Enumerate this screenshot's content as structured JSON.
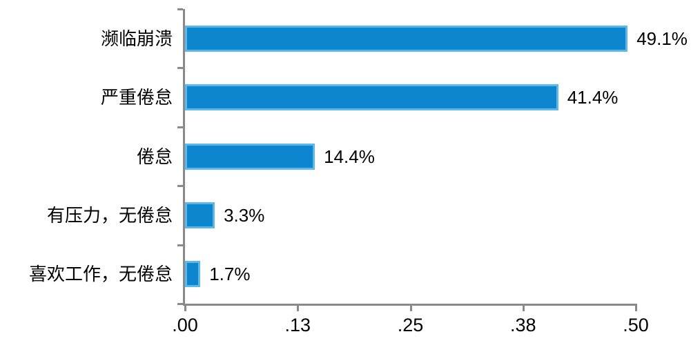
{
  "chart_data": {
    "type": "bar",
    "orientation": "horizontal",
    "title": "",
    "xlabel": "",
    "ylabel": "",
    "xlim": [
      0,
      0.5
    ],
    "grid": false,
    "legend": false,
    "categories": [
      "濒临崩溃",
      "严重倦怠",
      "倦怠",
      "有压力，无倦怠",
      "喜欢工作，无倦怠"
    ],
    "values": [
      0.491,
      0.414,
      0.144,
      0.033,
      0.017
    ],
    "data_labels": [
      "49.1%",
      "41.4%",
      "14.4%",
      "3.3%",
      "1.7%"
    ],
    "x_ticks": [
      {
        "value": 0.0,
        "label": ".00"
      },
      {
        "value": 0.125,
        "label": ".13"
      },
      {
        "value": 0.25,
        "label": ".25"
      },
      {
        "value": 0.375,
        "label": ".38"
      },
      {
        "value": 0.5,
        "label": ".50"
      }
    ],
    "colors": {
      "bar_fill": "#0d86cf",
      "bar_border": "#5db7e7",
      "axis": "#8a8a8a",
      "text": "#000000",
      "background": "#ffffff"
    }
  }
}
